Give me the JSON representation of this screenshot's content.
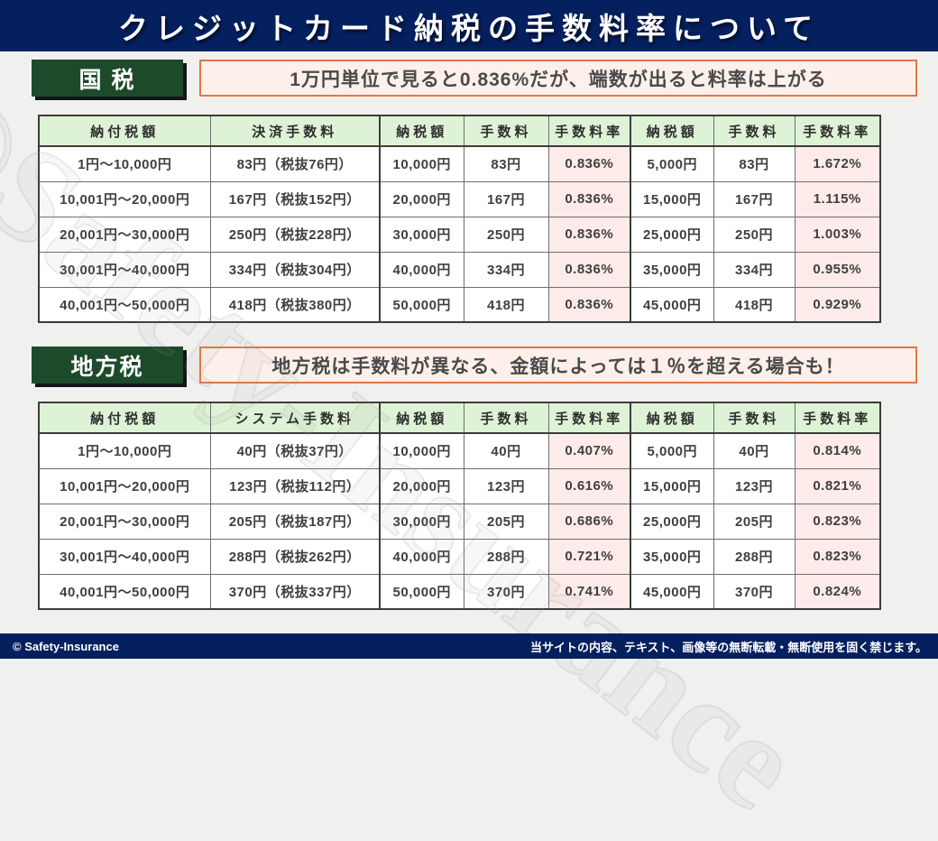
{
  "page": {
    "title": "クレジットカード納税の手数料率について",
    "watermark": "©Safety-Insurance"
  },
  "colors": {
    "navy": "#05205f",
    "badge_green": "#1d4a2b",
    "header_green": "#def3d6",
    "rate_pink": "#fcebe9",
    "note_background": "#fdf0ea",
    "note_border": "#e0793f"
  },
  "sections": [
    {
      "badge": "国 税",
      "note": "1万円単位で見ると0.836%だが、端数が出ると料率は上がる",
      "table": {
        "headers": [
          "納付税額",
          "決済手数料",
          "納税額",
          "手数料",
          "手数料率",
          "納税額",
          "手数料",
          "手数料率"
        ],
        "rows": [
          [
            "1円～10,000円",
            "83円（税抜76円）",
            "10,000円",
            "83円",
            "0.836%",
            "5,000円",
            "83円",
            "1.672%"
          ],
          [
            "10,001円～20,000円",
            "167円（税抜152円）",
            "20,000円",
            "167円",
            "0.836%",
            "15,000円",
            "167円",
            "1.115%"
          ],
          [
            "20,001円～30,000円",
            "250円（税抜228円）",
            "30,000円",
            "250円",
            "0.836%",
            "25,000円",
            "250円",
            "1.003%"
          ],
          [
            "30,001円～40,000円",
            "334円（税抜304円）",
            "40,000円",
            "334円",
            "0.836%",
            "35,000円",
            "334円",
            "0.955%"
          ],
          [
            "40,001円～50,000円",
            "418円（税抜380円）",
            "50,000円",
            "418円",
            "0.836%",
            "45,000円",
            "418円",
            "0.929%"
          ]
        ]
      }
    },
    {
      "badge": "地方税",
      "note": "地方税は手数料が異なる、金額によっては１％を超える場合も！",
      "table": {
        "headers": [
          "納付税額",
          "システム手数料",
          "納税額",
          "手数料",
          "手数料率",
          "納税額",
          "手数料",
          "手数料率"
        ],
        "rows": [
          [
            "1円～10,000円",
            "40円（税抜37円）",
            "10,000円",
            "40円",
            "0.407%",
            "5,000円",
            "40円",
            "0.814%"
          ],
          [
            "10,001円～20,000円",
            "123円（税抜112円）",
            "20,000円",
            "123円",
            "0.616%",
            "15,000円",
            "123円",
            "0.821%"
          ],
          [
            "20,001円～30,000円",
            "205円（税抜187円）",
            "30,000円",
            "205円",
            "0.686%",
            "25,000円",
            "205円",
            "0.823%"
          ],
          [
            "30,001円～40,000円",
            "288円（税抜262円）",
            "40,000円",
            "288円",
            "0.721%",
            "35,000円",
            "288円",
            "0.823%"
          ],
          [
            "40,001円～50,000円",
            "370円（税抜337円）",
            "50,000円",
            "370円",
            "0.741%",
            "45,000円",
            "370円",
            "0.824%"
          ]
        ]
      }
    }
  ],
  "footer": {
    "left": "© Safety-Insurance",
    "right": "当サイトの内容、テキスト、画像等の無断転載・無断使用を固く禁じます。"
  }
}
